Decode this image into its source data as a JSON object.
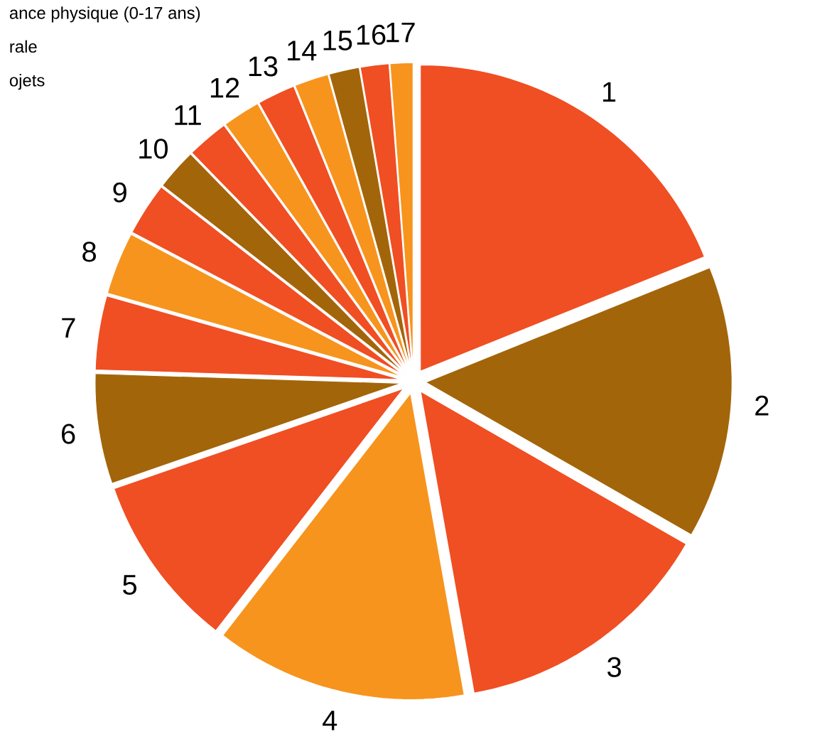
{
  "chart_data": {
    "type": "pie",
    "categories": [
      "1",
      "2",
      "3",
      "4",
      "5",
      "6",
      "7",
      "8",
      "9",
      "10",
      "11",
      "12",
      "13",
      "14",
      "15",
      "16",
      "17"
    ],
    "values": [
      18.9,
      14.4,
      13.9,
      13.3,
      9.2,
      5.8,
      3.9,
      3.3,
      2.8,
      2.2,
      2.2,
      2.0,
      2.0,
      1.8,
      1.6,
      1.5,
      1.2
    ],
    "colors": [
      "#f04e23",
      "#a3650a",
      "#f04e23",
      "#f7941d",
      "#f04e23",
      "#a3650a",
      "#f04e23",
      "#f7941d",
      "#f04e23",
      "#a3650a",
      "#f04e23",
      "#f7941d",
      "#f04e23",
      "#f7941d",
      "#a3650a",
      "#f04e23",
      "#f7941d"
    ],
    "annotations": [
      "ance physique (0-17 ans)",
      "rale",
      "ojets"
    ]
  }
}
